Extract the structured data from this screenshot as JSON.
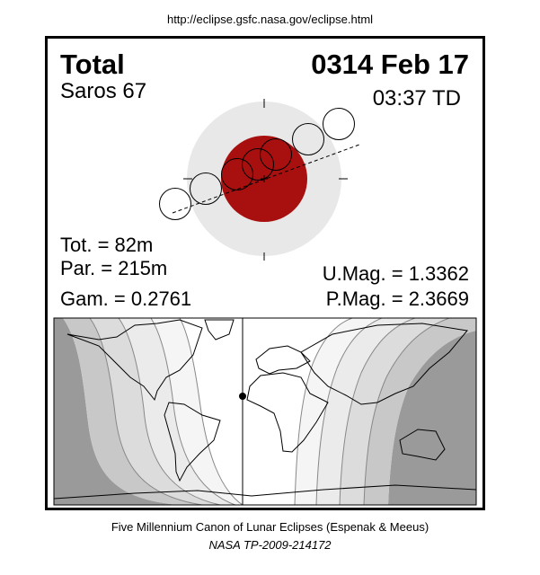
{
  "url": "http://eclipse.gsfc.nasa.gov/eclipse.html",
  "eclipse": {
    "type": "Total",
    "date": "0314 Feb 17",
    "saros": "Saros  67",
    "time": "03:37 TD",
    "tot": "Tot. =  82m",
    "par": "Par. = 215m",
    "gam": "Gam. = 0.2761",
    "umag": "U.Mag. = 1.3362",
    "pmag": "P.Mag. = 2.3669"
  },
  "colors": {
    "umbra": "#a81010",
    "penumbra": "#e8e8e8",
    "night": "#999999"
  },
  "footer": {
    "line1": "Five Millennium Canon of Lunar Eclipses (Espenak & Meeus)",
    "line2": "NASA TP-2009-214172"
  }
}
